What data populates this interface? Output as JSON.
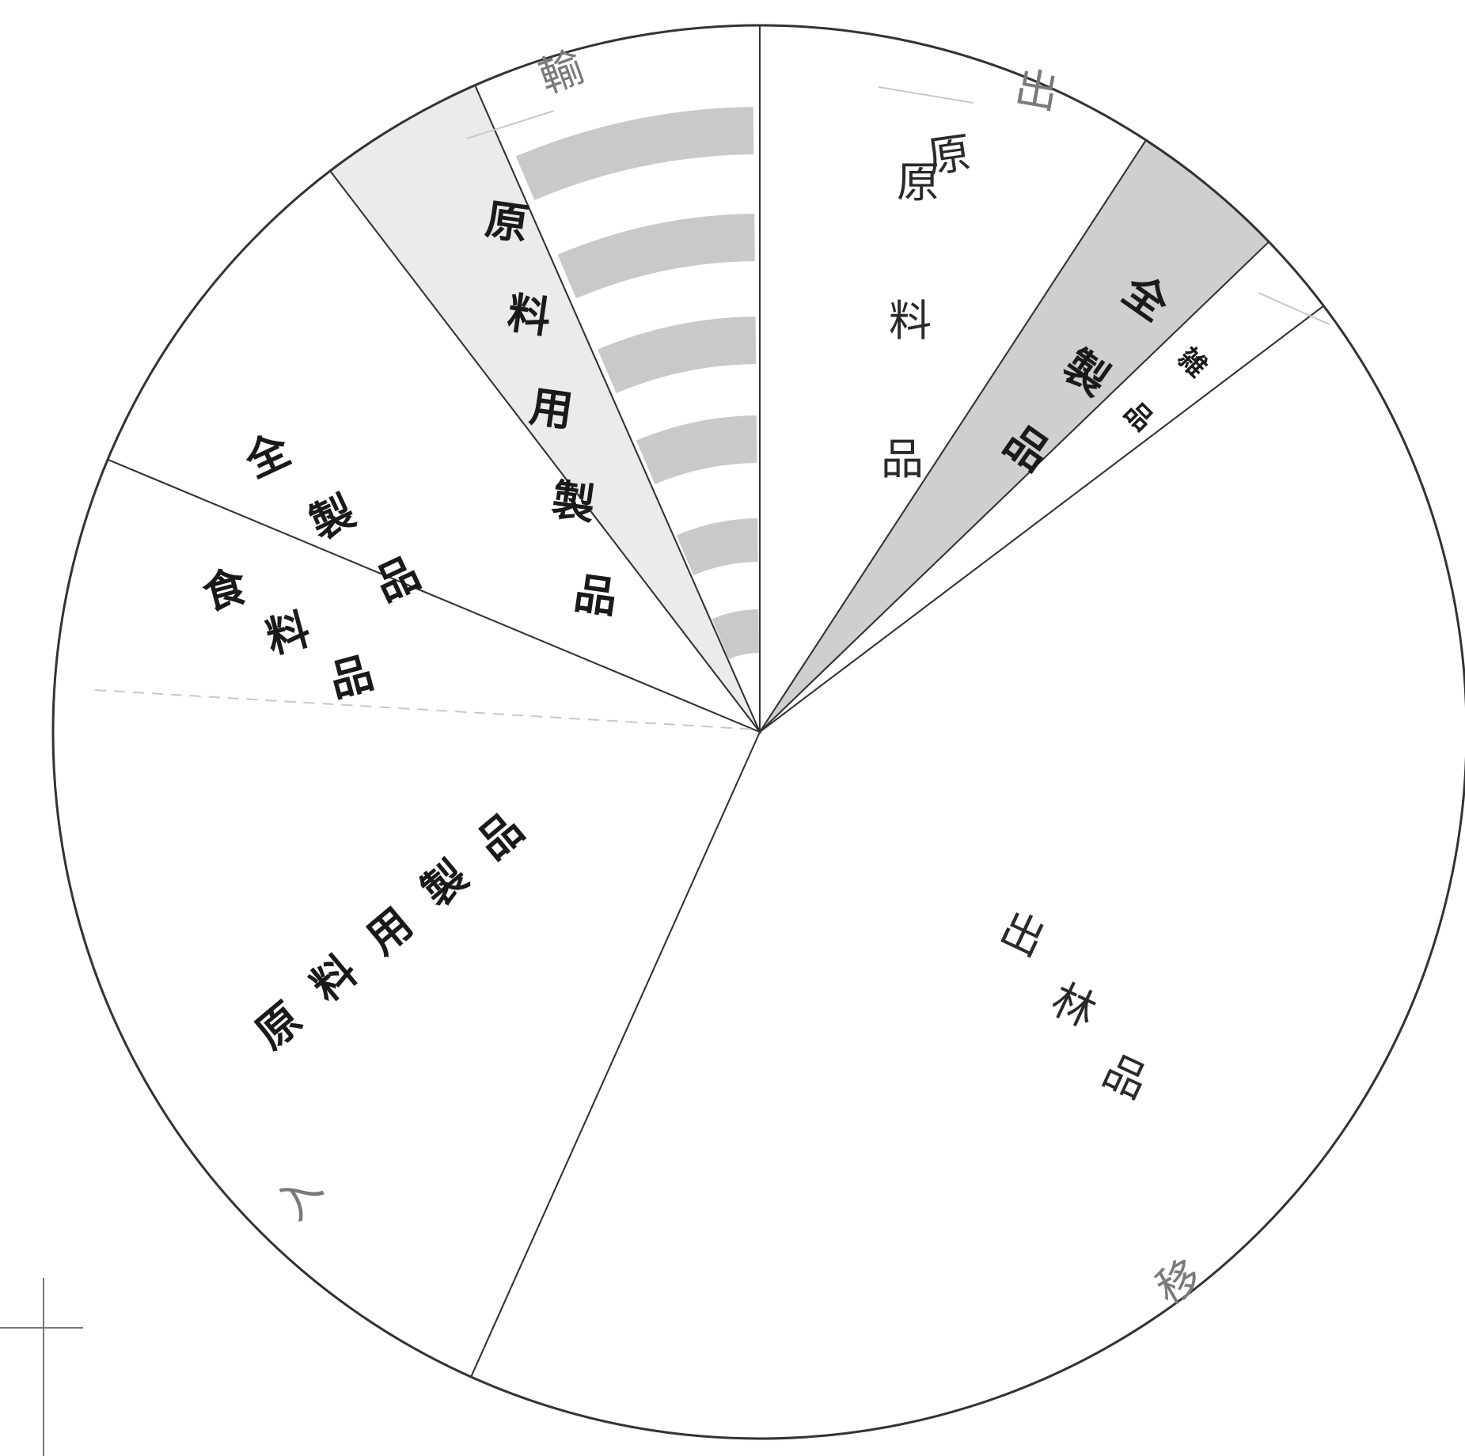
{
  "chart_data": {
    "type": "pie",
    "series": [
      {
        "segments": [
          {
            "label": "原料品",
            "value": 9.2,
            "fill": "#ffffff",
            "stroke": "#333333"
          },
          {
            "label": "全製品",
            "value": 3.6,
            "fill": "#cfcfcf",
            "stroke": "#333333"
          },
          {
            "label": "雑品",
            "value": 1.9,
            "fill": "#ffffff",
            "stroke": "#333333"
          },
          {
            "label": "出林品",
            "value": 42.0,
            "fill": "#ffffff",
            "stroke": "#333333"
          },
          {
            "label": "原料用製品",
            "value": 24.6,
            "fill": "#ffffff",
            "stroke": "#333333"
          },
          {
            "label": "食料品",
            "value": 8.3,
            "fill": "#ffffff",
            "stroke": "#333333"
          },
          {
            "label": "全製品",
            "value": 3.8,
            "fill": "#ebebeb",
            "stroke": "#333333"
          },
          {
            "label": "原料用製品",
            "value": 6.6,
            "fill": "#ffffff",
            "stroke": "#333333"
          }
        ],
        "inner_arcs_segment": "原料用製品",
        "inner_arcs_color": "#c9c9c9"
      }
    ],
    "other_text": [
      "輸",
      "出",
      "移",
      "入"
    ]
  }
}
